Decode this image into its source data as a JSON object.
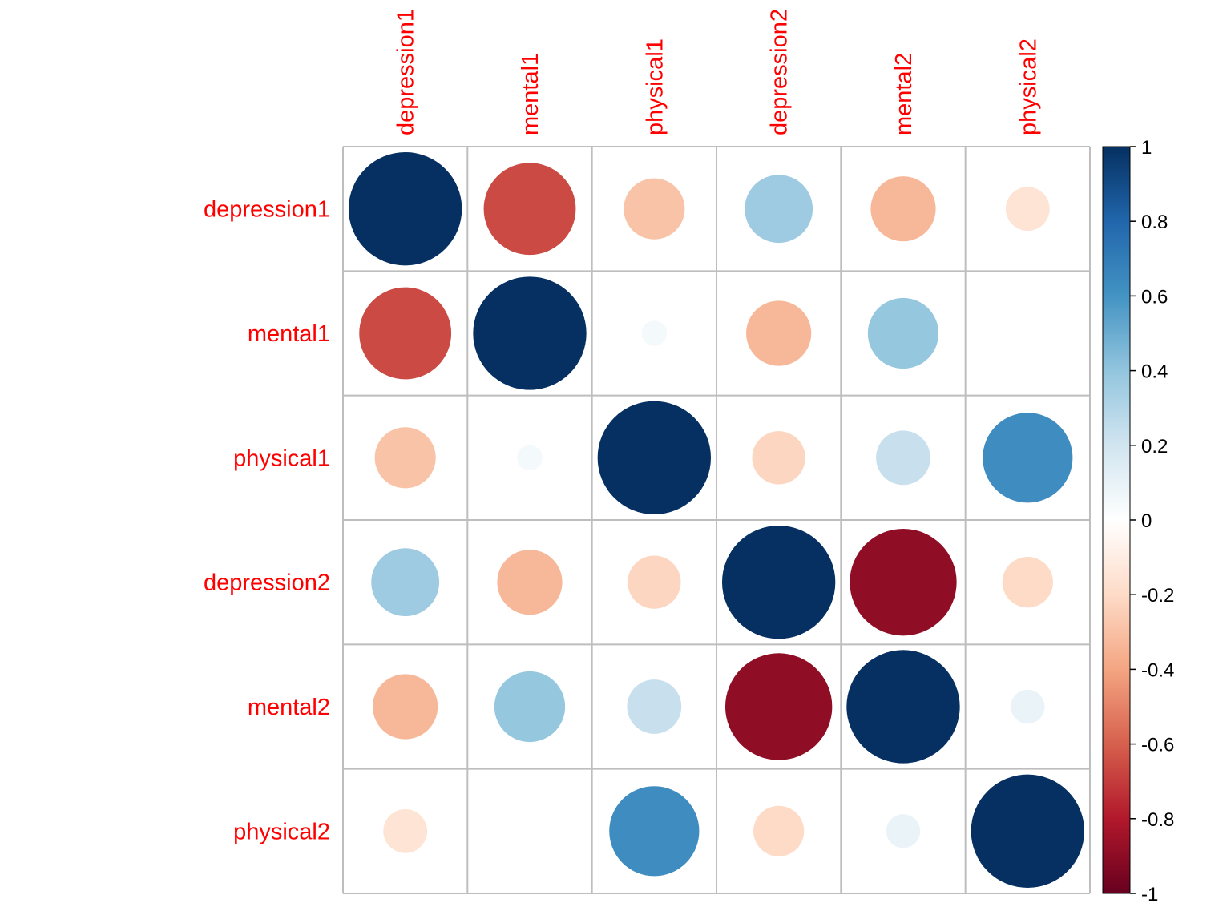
{
  "chart_data": {
    "type": "heatmap",
    "method": "circle",
    "variables": [
      "depression1",
      "mental1",
      "physical1",
      "depression2",
      "mental2",
      "physical2"
    ],
    "matrix": [
      [
        1.0,
        -0.66,
        -0.29,
        0.36,
        -0.33,
        -0.15
      ],
      [
        -0.66,
        1.0,
        0.05,
        -0.33,
        0.39,
        0.0
      ],
      [
        -0.29,
        0.05,
        1.0,
        -0.22,
        0.23,
        0.63
      ],
      [
        0.36,
        -0.33,
        -0.22,
        1.0,
        -0.89,
        -0.2
      ],
      [
        -0.33,
        0.39,
        0.23,
        -0.89,
        1.0,
        0.09
      ],
      [
        -0.15,
        0.0,
        0.63,
        -0.2,
        0.09,
        1.0
      ]
    ],
    "label_color": "#ff0000",
    "grid_color": "#bebebe",
    "colorbar": {
      "range": [
        -1,
        1
      ],
      "ticks": [
        "1",
        "0.8",
        "0.6",
        "0.4",
        "0.2",
        "0",
        "-0.2",
        "-0.4",
        "-0.6",
        "-0.8",
        "-1"
      ],
      "tick_values": [
        1,
        0.8,
        0.6,
        0.4,
        0.2,
        0,
        -0.2,
        -0.4,
        -0.6,
        -0.8,
        -1
      ],
      "palette": [
        "#67001F",
        "#B2182B",
        "#D6604D",
        "#F4A582",
        "#FDDBC7",
        "#FFFFFF",
        "#D1E5F0",
        "#92C5DE",
        "#4393C3",
        "#2166AC",
        "#053061"
      ]
    }
  }
}
